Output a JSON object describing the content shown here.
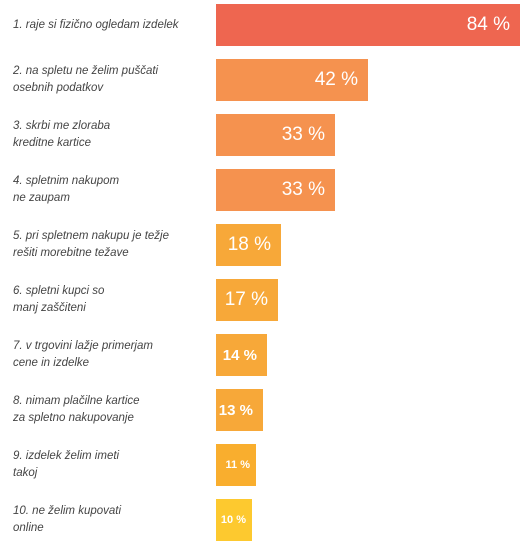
{
  "chart_data": {
    "type": "bar",
    "orientation": "horizontal",
    "xlim": [
      0,
      84
    ],
    "grid": false,
    "legend": "none",
    "categories": [
      "1. raje si fizično ogledam izdelek",
      "2. na spletu ne želim puščati\nosebnih podatkov",
      "3. skrbi me zloraba\nkreditne kartice",
      "4. spletnim nakupom\nne zaupam",
      "5. pri spletnem nakupu je težje\nrešiti morebitne težave",
      "6. spletni kupci so\nmanj zaščiteni",
      "7. v trgovini lažje primerjam\ncene in izdelke",
      "8. nimam plačilne kartice\nza spletno nakupovanje",
      "9. izdelek želim imeti\ntakoj",
      "10. ne želim kupovati\nonline"
    ],
    "values": [
      84,
      42,
      33,
      33,
      18,
      17,
      14,
      13,
      11,
      10
    ],
    "value_labels": [
      "84 %",
      "42 %",
      "33 %",
      "33 %",
      "18 %",
      "17 %",
      "14 %",
      "13 %",
      "11 %",
      "10 %"
    ],
    "colors": [
      "#ee6650",
      "#f5924f",
      "#f5924f",
      "#f5924f",
      "#f7a839",
      "#f7a839",
      "#f7a839",
      "#f7a839",
      "#f9ae2e",
      "#fdc92f"
    ]
  }
}
